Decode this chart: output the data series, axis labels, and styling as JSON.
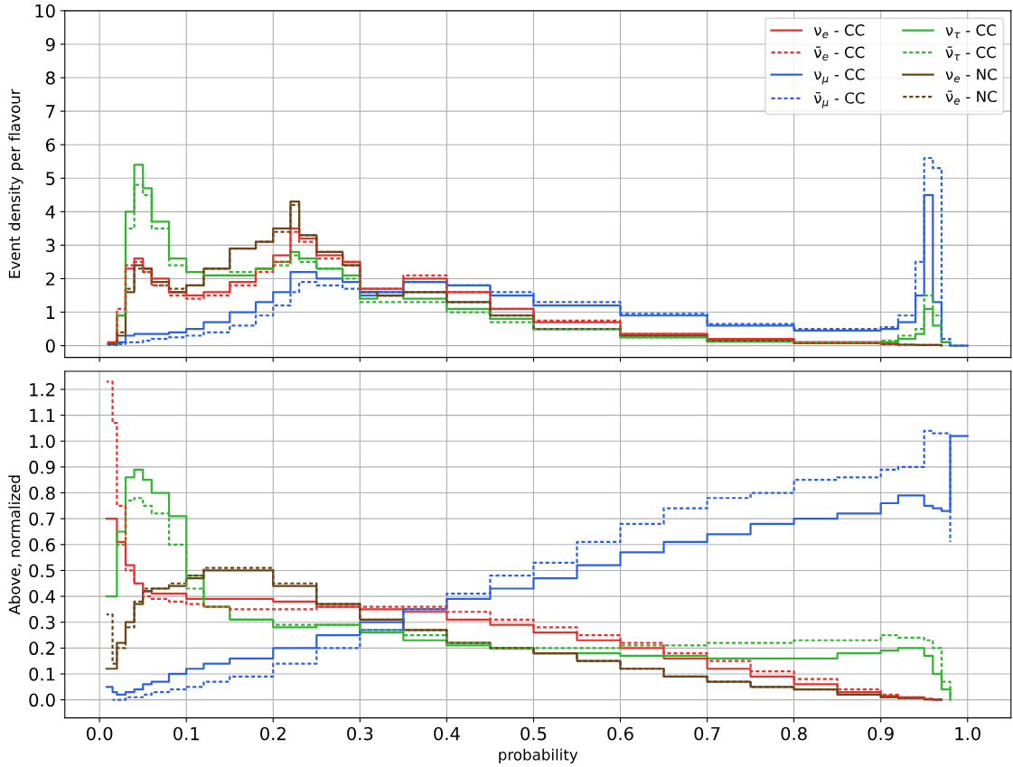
{
  "chart_data": [
    {
      "type": "step",
      "ylabel": "Event density per flavour",
      "xlim": [
        -0.04,
        1.05
      ],
      "ylim": [
        -0.35,
        10
      ],
      "xticks": [
        0,
        0.1,
        0.2,
        0.3,
        0.4,
        0.5,
        0.6,
        0.7,
        0.8,
        0.9,
        1
      ],
      "yticks": [
        0,
        1,
        2,
        3,
        4,
        5,
        6,
        7,
        8,
        9,
        10
      ],
      "tick_labels": "y",
      "grid": true,
      "legend": "top right",
      "x": [
        0.01,
        0.02,
        0.03,
        0.04,
        0.05,
        0.06,
        0.08,
        0.1,
        0.12,
        0.15,
        0.18,
        0.2,
        0.22,
        0.23,
        0.25,
        0.28,
        0.3,
        0.32,
        0.35,
        0.4,
        0.45,
        0.5,
        0.6,
        0.7,
        0.8,
        0.9,
        0.92,
        0.94,
        0.95,
        0.96,
        0.97,
        0.98,
        1.0
      ],
      "series": [
        {
          "name": "ν$_{e}$ - CC",
          "color": "#e8302c",
          "line_style": "solid",
          "values": [
            0.1,
            0.9,
            2.3,
            2.6,
            2.3,
            2.0,
            1.6,
            1.5,
            1.6,
            1.9,
            2.3,
            2.7,
            3.5,
            3.2,
            2.7,
            2.5,
            1.7,
            1.7,
            2.0,
            1.6,
            1.1,
            0.7,
            0.35,
            0.2,
            0.1,
            0.05,
            0.03,
            null,
            null,
            null,
            null,
            null,
            null
          ]
        },
        {
          "name": "ν̄$_{e}$ - CC",
          "color": "#e8302c",
          "line_style": "dashed",
          "values": [
            0.1,
            1.1,
            2.4,
            2.5,
            2.2,
            1.8,
            1.5,
            1.4,
            1.5,
            1.8,
            2.2,
            2.5,
            3.4,
            3.1,
            2.6,
            2.5,
            1.7,
            1.7,
            2.1,
            1.6,
            1.1,
            0.75,
            0.35,
            0.2,
            0.1,
            0.05,
            0.03,
            null,
            null,
            null,
            null,
            null,
            null
          ]
        },
        {
          "name": "ν$_{μ}$ - CC",
          "color": "#2b62e3",
          "line_style": "solid",
          "values": [
            0.05,
            0.1,
            0.3,
            0.35,
            0.35,
            0.35,
            0.4,
            0.5,
            0.7,
            1.0,
            1.3,
            1.6,
            2.2,
            2.2,
            2.0,
            1.9,
            1.5,
            1.6,
            1.9,
            1.8,
            1.5,
            1.2,
            0.9,
            0.6,
            0.45,
            0.5,
            0.7,
            1.5,
            4.5,
            1.3,
            0.1,
            0,
            0
          ]
        },
        {
          "name": "ν̄$_{μ}$ - CC",
          "color": "#2b62e3",
          "line_style": "dashed",
          "values": [
            0.02,
            0.05,
            0.1,
            0.1,
            0.15,
            0.2,
            0.25,
            0.3,
            0.4,
            0.6,
            0.9,
            1.2,
            1.6,
            1.9,
            1.8,
            1.7,
            1.6,
            1.6,
            1.9,
            1.8,
            1.6,
            1.3,
            0.95,
            0.65,
            0.5,
            0.55,
            0.9,
            2.5,
            5.6,
            5.3,
            0.2,
            0,
            0
          ]
        },
        {
          "name": "ν$_{τ}$ - CC",
          "color": "#33b533",
          "line_style": "solid",
          "values": [
            0.05,
            0.9,
            4.0,
            5.4,
            4.7,
            3.7,
            2.6,
            2.2,
            2.1,
            2.1,
            2.3,
            2.5,
            2.8,
            2.6,
            2.3,
            2.1,
            1.4,
            1.5,
            1.4,
            1.1,
            0.8,
            0.5,
            0.25,
            0.12,
            0.08,
            0.1,
            0.2,
            0.35,
            1.1,
            0.6,
            0.1,
            0,
            null
          ]
        },
        {
          "name": "ν̄$_{τ}$ - CC",
          "color": "#33b533",
          "line_style": "dashed",
          "values": [
            null,
            0.9,
            3.5,
            4.8,
            4.5,
            3.5,
            2.4,
            2.2,
            2.1,
            2.2,
            2.3,
            2.4,
            2.7,
            2.5,
            2.3,
            2.0,
            1.3,
            1.3,
            1.3,
            1.0,
            0.7,
            0.5,
            0.25,
            0.12,
            0.1,
            0.15,
            0.3,
            0.5,
            1.5,
            0.9,
            0.1,
            0,
            null
          ]
        },
        {
          "name": "ν$_{e}$ - NC",
          "color": "#6b4418",
          "line_style": "solid",
          "values": [
            0.05,
            0.3,
            1.6,
            2.4,
            2.3,
            1.9,
            1.6,
            1.8,
            2.3,
            2.9,
            3.1,
            3.5,
            4.3,
            3.3,
            2.8,
            2.4,
            1.6,
            1.5,
            1.6,
            1.3,
            0.9,
            0.5,
            0.3,
            0.15,
            0.08,
            0.05,
            0.03,
            0.02,
            0.02,
            0.02,
            0,
            null,
            null
          ]
        },
        {
          "name": "ν̄$_{e}$ - NC",
          "color": "#6b4418",
          "line_style": "dashed",
          "values": [
            0.05,
            0.4,
            1.7,
            2.3,
            2.2,
            1.8,
            1.7,
            1.8,
            2.3,
            2.9,
            3.1,
            3.4,
            4.2,
            3.3,
            2.8,
            2.4,
            1.6,
            1.5,
            1.6,
            1.3,
            0.9,
            0.5,
            0.3,
            0.15,
            0.08,
            0.05,
            0.03,
            0.02,
            0.02,
            0.02,
            0,
            null,
            null
          ]
        }
      ]
    },
    {
      "type": "step",
      "xlabel": "probability",
      "ylabel": "Above, normalized",
      "xlim": [
        -0.04,
        1.05
      ],
      "ylim": [
        -0.07,
        1.27
      ],
      "xticks": [
        {
          "value": 0,
          "label": "0.0"
        },
        0.1,
        0.2,
        0.3,
        0.4,
        0.5,
        0.6,
        0.7,
        0.8,
        0.9,
        {
          "value": 1,
          "label": "1.0"
        }
      ],
      "yticks": [
        {
          "value": 0,
          "label": "0.0"
        },
        0.1,
        0.2,
        0.3,
        0.4,
        0.5,
        0.6,
        0.7,
        0.8,
        0.9,
        {
          "value": 1,
          "label": "1.0"
        },
        1.1,
        1.2
      ],
      "grid": true,
      "x": [
        0.008,
        0.015,
        0.02,
        0.03,
        0.04,
        0.05,
        0.06,
        0.08,
        0.1,
        0.12,
        0.15,
        0.2,
        0.25,
        0.3,
        0.35,
        0.4,
        0.45,
        0.5,
        0.55,
        0.6,
        0.65,
        0.7,
        0.75,
        0.8,
        0.85,
        0.9,
        0.92,
        0.95,
        0.96,
        0.97,
        0.98,
        1.0
      ],
      "series": [
        {
          "color": "#e8302c",
          "line_style": "solid",
          "values": [
            0.7,
            0.7,
            0.61,
            0.52,
            0.45,
            0.42,
            0.41,
            0.41,
            0.39,
            0.39,
            0.39,
            0.38,
            0.36,
            0.35,
            0.34,
            0.31,
            0.29,
            0.26,
            0.23,
            0.2,
            0.16,
            0.12,
            0.09,
            0.06,
            0.03,
            0.015,
            0.01,
            0.003,
            0.002,
            0.001,
            null,
            null
          ]
        },
        {
          "color": "#e8302c",
          "line_style": "dashed",
          "values": [
            1.23,
            1.07,
            0.75,
            0.5,
            0.45,
            0.4,
            0.39,
            0.38,
            0.37,
            0.36,
            0.35,
            0.35,
            0.36,
            0.36,
            0.36,
            0.34,
            0.31,
            0.28,
            0.25,
            0.22,
            0.18,
            0.15,
            0.11,
            0.08,
            0.04,
            0.02,
            0.01,
            0.004,
            0.002,
            0.001,
            null,
            null
          ]
        },
        {
          "color": "#2b62e3",
          "line_style": "solid",
          "values": [
            0.05,
            0.03,
            0.02,
            0.03,
            0.04,
            0.06,
            0.07,
            0.1,
            0.12,
            0.14,
            0.16,
            0.2,
            0.25,
            0.3,
            0.35,
            0.39,
            0.43,
            0.47,
            0.52,
            0.57,
            0.61,
            0.64,
            0.68,
            0.7,
            0.72,
            0.76,
            0.79,
            0.75,
            0.74,
            0.73,
            1.02,
            1.02
          ]
        },
        {
          "color": "#2b62e3",
          "line_style": "dashed",
          "values": [
            null,
            0.0,
            0.0,
            0.01,
            0.01,
            0.02,
            0.03,
            0.04,
            0.05,
            0.07,
            0.09,
            0.14,
            0.2,
            0.27,
            0.35,
            0.41,
            0.48,
            0.53,
            0.61,
            0.68,
            0.74,
            0.78,
            0.8,
            0.85,
            0.86,
            0.89,
            0.9,
            1.04,
            1.03,
            1.03,
            0.61,
            null
          ]
        },
        {
          "color": "#33b533",
          "line_style": "solid",
          "values": [
            0.4,
            0.4,
            0.65,
            0.86,
            0.89,
            0.85,
            0.8,
            0.71,
            0.48,
            0.36,
            0.31,
            0.28,
            0.29,
            0.26,
            0.23,
            0.21,
            0.2,
            0.18,
            0.18,
            0.17,
            0.17,
            0.16,
            0.16,
            0.16,
            0.18,
            0.19,
            0.2,
            0.17,
            0.1,
            0.04,
            0.0,
            null
          ]
        },
        {
          "color": "#33b533",
          "line_style": "dashed",
          "values": [
            null,
            null,
            0.6,
            0.77,
            0.78,
            0.75,
            0.72,
            0.6,
            0.43,
            0.36,
            0.31,
            0.29,
            0.29,
            0.27,
            0.25,
            0.22,
            0.2,
            0.2,
            0.2,
            0.21,
            0.21,
            0.22,
            0.22,
            0.23,
            0.23,
            0.25,
            0.24,
            0.23,
            0.2,
            0.07,
            0.0,
            null
          ]
        },
        {
          "color": "#6b4418",
          "line_style": "solid",
          "values": [
            0.12,
            0.12,
            0.22,
            0.3,
            0.37,
            0.42,
            0.43,
            0.44,
            0.47,
            0.5,
            0.5,
            0.44,
            0.37,
            0.31,
            0.27,
            0.22,
            0.2,
            0.18,
            0.15,
            0.12,
            0.09,
            0.07,
            0.05,
            0.04,
            0.02,
            0.01,
            0.007,
            0.002,
            0.001,
            0.0,
            null,
            null
          ]
        },
        {
          "color": "#6b4418",
          "line_style": "dashed",
          "values": [
            0.33,
            0.14,
            0.2,
            0.28,
            0.38,
            0.43,
            0.43,
            0.45,
            0.48,
            0.51,
            0.51,
            0.45,
            0.37,
            0.31,
            0.27,
            0.22,
            0.2,
            0.18,
            0.15,
            0.12,
            0.09,
            0.07,
            0.05,
            0.04,
            0.02,
            0.01,
            0.007,
            0.002,
            0.001,
            0.0,
            null,
            null
          ]
        }
      ]
    }
  ]
}
